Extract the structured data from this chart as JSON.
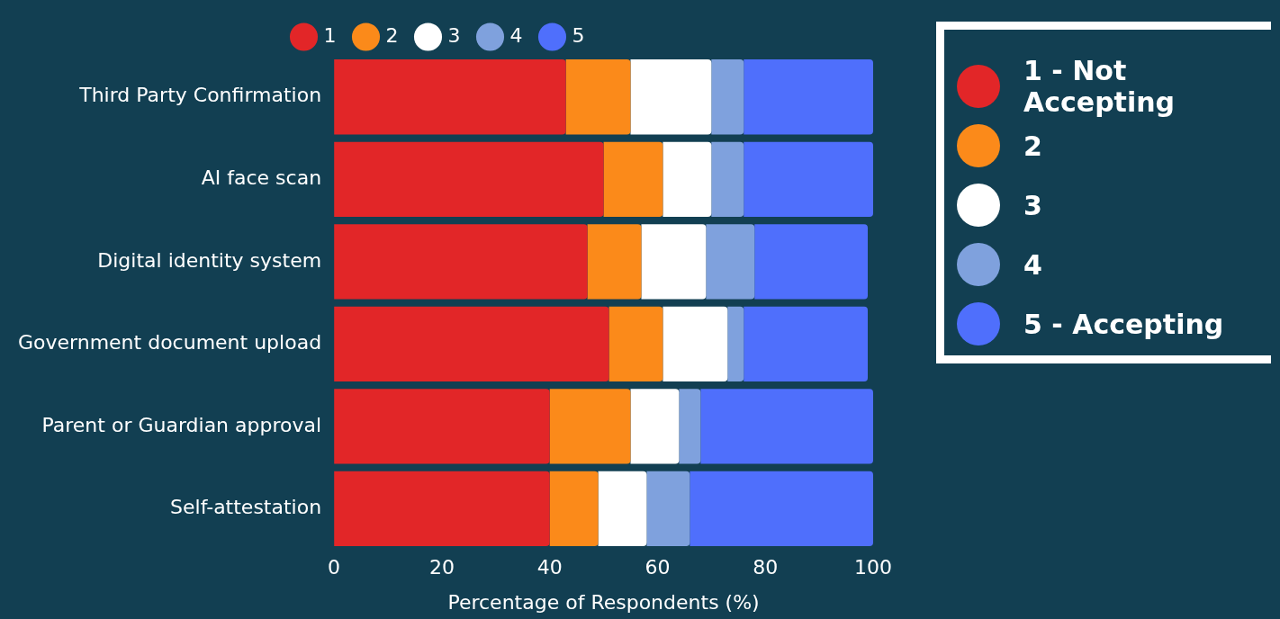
{
  "chart_data": {
    "type": "bar",
    "orientation": "horizontal",
    "stacked": true,
    "xlabel": "Percentage of Respondents (%)",
    "categories": [
      "Third Party Confirmation",
      "AI face scan",
      "Digital identity system",
      "Government document upload",
      "Parent or Guardian approval",
      "Self-attestation"
    ],
    "series": [
      {
        "name": "1",
        "color": "#e22628",
        "values": [
          43,
          50,
          47,
          51,
          40,
          40
        ]
      },
      {
        "name": "2",
        "color": "#fb8a1a",
        "values": [
          12,
          11,
          10,
          10,
          15,
          9
        ]
      },
      {
        "name": "3",
        "color": "#ffffff",
        "values": [
          15,
          9,
          12,
          12,
          9,
          9
        ]
      },
      {
        "name": "4",
        "color": "#7fa1dd",
        "values": [
          6,
          6,
          9,
          3,
          4,
          8
        ]
      },
      {
        "name": "5",
        "color": "#4f6ffc",
        "values": [
          24,
          24,
          21,
          23,
          32,
          34
        ]
      }
    ],
    "xlim": [
      0,
      100
    ],
    "xticks": [
      0,
      20,
      40,
      60,
      80,
      100
    ],
    "grid": false,
    "legend": "top",
    "annotations": [
      "1 - Not Accepting",
      "2",
      "3",
      "4",
      "5 - Accepting"
    ]
  }
}
